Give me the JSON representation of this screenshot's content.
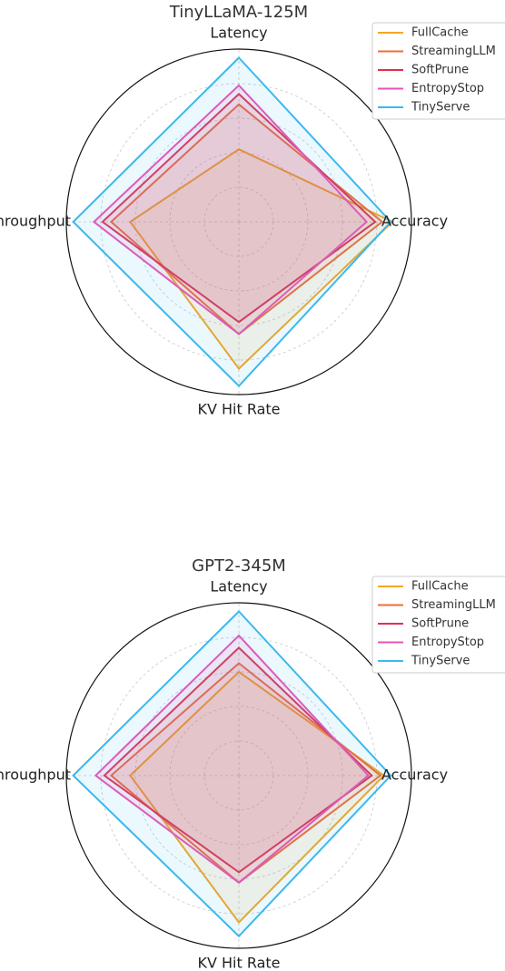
{
  "chart_data": [
    {
      "type": "radar",
      "title": "TinyLLaMA-125M",
      "categories": [
        "Latency",
        "Accuracy",
        "KV Hit Rate",
        "Throughput"
      ],
      "rlim": [
        0,
        1
      ],
      "rticks": [
        0.2,
        0.4,
        0.6,
        0.8
      ],
      "grid": true,
      "legend": "upper right",
      "series": [
        {
          "name": "FullCache",
          "color": "#f5a623",
          "values": [
            0.42,
            0.89,
            0.85,
            0.63
          ]
        },
        {
          "name": "StreamingLLM",
          "color": "#f26b38",
          "values": [
            0.68,
            0.83,
            0.65,
            0.74
          ]
        },
        {
          "name": "SoftPrune",
          "color": "#e0304f",
          "values": [
            0.74,
            0.79,
            0.58,
            0.79
          ]
        },
        {
          "name": "EntropyStop",
          "color": "#ec52b4",
          "values": [
            0.79,
            0.74,
            0.65,
            0.84
          ]
        },
        {
          "name": "TinyServe",
          "color": "#3cb8ee",
          "values": [
            0.95,
            0.88,
            0.95,
            0.96
          ]
        }
      ]
    },
    {
      "type": "radar",
      "title": "GPT2-345M",
      "categories": [
        "Latency",
        "Accuracy",
        "KV Hit Rate",
        "Throughput"
      ],
      "rlim": [
        0,
        1
      ],
      "rticks": [
        0.2,
        0.4,
        0.6,
        0.8
      ],
      "grid": true,
      "legend": "upper right",
      "series": [
        {
          "name": "FullCache",
          "color": "#f5a623",
          "values": [
            0.6,
            0.84,
            0.85,
            0.63
          ]
        },
        {
          "name": "StreamingLLM",
          "color": "#f26b38",
          "values": [
            0.65,
            0.82,
            0.62,
            0.74
          ]
        },
        {
          "name": "SoftPrune",
          "color": "#e0304f",
          "values": [
            0.74,
            0.77,
            0.56,
            0.78
          ]
        },
        {
          "name": "EntropyStop",
          "color": "#ec52b4",
          "values": [
            0.81,
            0.75,
            0.62,
            0.83
          ]
        },
        {
          "name": "TinyServe",
          "color": "#3cb8ee",
          "values": [
            0.95,
            0.88,
            0.93,
            0.96
          ]
        }
      ]
    }
  ]
}
